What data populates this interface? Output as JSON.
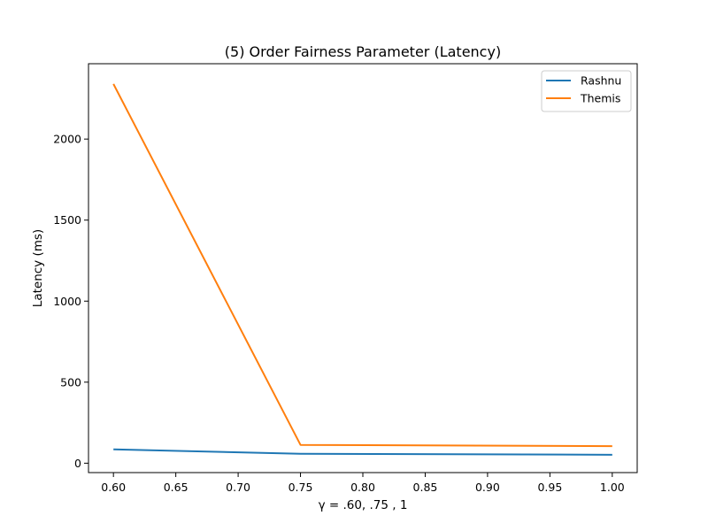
{
  "chart_data": {
    "type": "line",
    "title": "(5) Order Fairness Parameter (Latency)",
    "xlabel": "γ = .60, .75 , 1",
    "ylabel": "Latency (ms)",
    "xlim": [
      0.58,
      1.02
    ],
    "ylim": [
      -58,
      2465
    ],
    "x_ticks": [
      0.6,
      0.65,
      0.7,
      0.75,
      0.8,
      0.85,
      0.9,
      0.95,
      1.0
    ],
    "x_tick_labels": [
      "0.60",
      "0.65",
      "0.70",
      "0.75",
      "0.80",
      "0.85",
      "0.90",
      "0.95",
      "1.00"
    ],
    "y_ticks": [
      0,
      500,
      1000,
      1500,
      2000
    ],
    "y_tick_labels": [
      "0",
      "500",
      "1000",
      "1500",
      "2000"
    ],
    "grid": false,
    "legend_position": "top-right",
    "x": [
      0.6,
      0.75,
      1.0
    ],
    "series": [
      {
        "name": "Rashnu",
        "color": "#1f77b4",
        "values": [
          85,
          58,
          52
        ]
      },
      {
        "name": "Themis",
        "color": "#ff7f0e",
        "values": [
          2340,
          113,
          105
        ]
      }
    ]
  }
}
